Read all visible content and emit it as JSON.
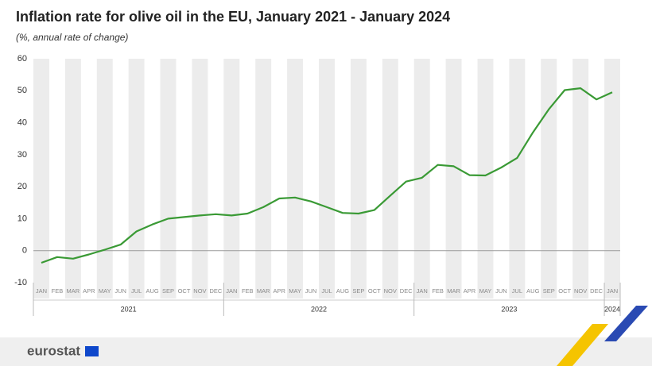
{
  "chart_data": {
    "type": "line",
    "title": "Inflation rate for olive oil in the EU, January 2021 - January 2024",
    "subtitle": "(%, annual rate of change)",
    "categories": [
      "JAN",
      "FEB",
      "MAR",
      "APR",
      "MAY",
      "JUN",
      "JUL",
      "AUG",
      "SEP",
      "OCT",
      "NOV",
      "DEC",
      "JAN",
      "FEB",
      "MAR",
      "APR",
      "MAY",
      "JUN",
      "JUL",
      "AUG",
      "SEP",
      "OCT",
      "NOV",
      "DEC",
      "JAN",
      "FEB",
      "MAR",
      "APR",
      "MAY",
      "JUN",
      "JUL",
      "AUG",
      "SEP",
      "OCT",
      "NOV",
      "DEC",
      "JAN"
    ],
    "years": [
      "2021",
      "2022",
      "2023",
      "2024"
    ],
    "values": [
      -3.8,
      -2,
      -2.5,
      -1.2,
      0.3,
      1.9,
      6,
      8.2,
      10,
      10.5,
      11,
      11.4,
      11,
      11.6,
      13.6,
      16.3,
      16.6,
      15.4,
      13.6,
      11.8,
      11.6,
      12.7,
      17.2,
      21.6,
      22.8,
      26.8,
      26.4,
      23.6,
      23.5,
      26,
      29,
      37,
      44.2,
      50.2,
      50.8,
      47.3,
      49.5
    ],
    "color": "#3a9a35",
    "ylim": [
      -10,
      60
    ],
    "yticks": [
      -10,
      0,
      10,
      20,
      30,
      40,
      50,
      60
    ],
    "footer": "eurostat"
  }
}
